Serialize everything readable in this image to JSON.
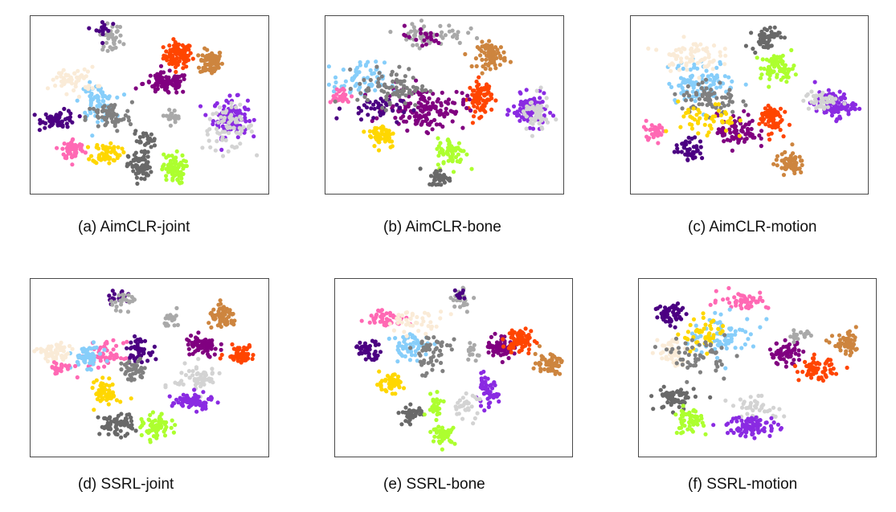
{
  "chart_data": [
    {
      "type": "scatter",
      "caption": "(a) AimCLR-joint",
      "xlim": [
        0,
        100
      ],
      "ylim": [
        0,
        100
      ],
      "clusters": [
        {
          "color": "#ff4500",
          "center": [
            62,
            78
          ],
          "spread": [
            5,
            6
          ],
          "count": 90
        },
        {
          "color": "#cd853f",
          "center": [
            76,
            74
          ],
          "spread": [
            4,
            6
          ],
          "count": 80
        },
        {
          "color": "#8a2be2",
          "center": [
            84,
            43
          ],
          "spread": [
            6,
            9
          ],
          "count": 110
        },
        {
          "color": "#d3d3d3",
          "center": [
            83,
            37
          ],
          "spread": [
            9,
            10
          ],
          "count": 70
        },
        {
          "color": "#800080",
          "center": [
            57,
            62
          ],
          "spread": [
            8,
            5
          ],
          "count": 90
        },
        {
          "color": "#4b0082",
          "center": [
            12,
            42
          ],
          "spread": [
            6,
            4
          ],
          "count": 60
        },
        {
          "color": "#87cefa",
          "center": [
            28,
            52
          ],
          "spread": [
            6,
            8
          ],
          "count": 70
        },
        {
          "color": "#808080",
          "center": [
            33,
            43
          ],
          "spread": [
            8,
            7
          ],
          "count": 60
        },
        {
          "color": "#ff69b4",
          "center": [
            18,
            25
          ],
          "spread": [
            4,
            5
          ],
          "count": 55
        },
        {
          "color": "#ffd700",
          "center": [
            32,
            23
          ],
          "spread": [
            5,
            5
          ],
          "count": 60
        },
        {
          "color": "#adff2f",
          "center": [
            60,
            14
          ],
          "spread": [
            4,
            7
          ],
          "count": 70
        },
        {
          "color": "#696969",
          "center": [
            46,
            15
          ],
          "spread": [
            4,
            7
          ],
          "count": 70
        },
        {
          "color": "#faebd7",
          "center": [
            18,
            64
          ],
          "spread": [
            8,
            6
          ],
          "count": 55
        },
        {
          "color": "#a9a9a9",
          "center": [
            34,
            88
          ],
          "spread": [
            4,
            6
          ],
          "count": 35
        },
        {
          "color": "#4b0082",
          "center": [
            30,
            92
          ],
          "spread": [
            3,
            5
          ],
          "count": 15
        },
        {
          "color": "#a9a9a9",
          "center": [
            60,
            44
          ],
          "spread": [
            4,
            3
          ],
          "count": 20
        },
        {
          "color": "#696969",
          "center": [
            48,
            30
          ],
          "spread": [
            4,
            4
          ],
          "count": 25
        }
      ]
    },
    {
      "type": "scatter",
      "caption": "(b) AimCLR-bone",
      "xlim": [
        0,
        100
      ],
      "ylim": [
        0,
        100
      ],
      "clusters": [
        {
          "color": "#cd853f",
          "center": [
            70,
            78
          ],
          "spread": [
            5,
            6
          ],
          "count": 75
        },
        {
          "color": "#ff4500",
          "center": [
            65,
            54
          ],
          "spread": [
            4,
            8
          ],
          "count": 85
        },
        {
          "color": "#8a2be2",
          "center": [
            86,
            47
          ],
          "spread": [
            6,
            7
          ],
          "count": 90
        },
        {
          "color": "#d3d3d3",
          "center": [
            88,
            44
          ],
          "spread": [
            5,
            9
          ],
          "count": 50
        },
        {
          "color": "#800080",
          "center": [
            42,
            48
          ],
          "spread": [
            14,
            10
          ],
          "count": 140
        },
        {
          "color": "#4b0082",
          "center": [
            20,
            48
          ],
          "spread": [
            10,
            6
          ],
          "count": 40
        },
        {
          "color": "#87cefa",
          "center": [
            14,
            63
          ],
          "spread": [
            9,
            9
          ],
          "count": 60
        },
        {
          "color": "#ff69b4",
          "center": [
            6,
            55
          ],
          "spread": [
            4,
            4
          ],
          "count": 25
        },
        {
          "color": "#808080",
          "center": [
            28,
            60
          ],
          "spread": [
            12,
            9
          ],
          "count": 80
        },
        {
          "color": "#ffd700",
          "center": [
            24,
            33
          ],
          "spread": [
            5,
            6
          ],
          "count": 55
        },
        {
          "color": "#adff2f",
          "center": [
            53,
            23
          ],
          "spread": [
            5,
            7
          ],
          "count": 65
        },
        {
          "color": "#696969",
          "center": [
            48,
            9
          ],
          "spread": [
            4,
            4
          ],
          "count": 40
        },
        {
          "color": "#a9a9a9",
          "center": [
            44,
            90
          ],
          "spread": [
            12,
            5
          ],
          "count": 60
        },
        {
          "color": "#800080",
          "center": [
            40,
            88
          ],
          "spread": [
            8,
            5
          ],
          "count": 20
        }
      ]
    },
    {
      "type": "scatter",
      "caption": "(c) AimCLR-motion",
      "xlim": [
        0,
        100
      ],
      "ylim": [
        0,
        100
      ],
      "clusters": [
        {
          "color": "#696969",
          "center": [
            57,
            88
          ],
          "spread": [
            5,
            6
          ],
          "count": 55
        },
        {
          "color": "#adff2f",
          "center": [
            62,
            71
          ],
          "spread": [
            6,
            6
          ],
          "count": 70
        },
        {
          "color": "#8a2be2",
          "center": [
            86,
            50
          ],
          "spread": [
            7,
            6
          ],
          "count": 90
        },
        {
          "color": "#d3d3d3",
          "center": [
            80,
            52
          ],
          "spread": [
            6,
            5
          ],
          "count": 40
        },
        {
          "color": "#ff4500",
          "center": [
            59,
            43
          ],
          "spread": [
            4,
            7
          ],
          "count": 70
        },
        {
          "color": "#cd853f",
          "center": [
            67,
            17
          ],
          "spread": [
            5,
            5
          ],
          "count": 60
        },
        {
          "color": "#800080",
          "center": [
            45,
            35
          ],
          "spread": [
            7,
            8
          ],
          "count": 80
        },
        {
          "color": "#4b0082",
          "center": [
            25,
            25
          ],
          "spread": [
            5,
            5
          ],
          "count": 45
        },
        {
          "color": "#87cefa",
          "center": [
            30,
            63
          ],
          "spread": [
            12,
            10
          ],
          "count": 100
        },
        {
          "color": "#faebd7",
          "center": [
            25,
            78
          ],
          "spread": [
            10,
            7
          ],
          "count": 70
        },
        {
          "color": "#808080",
          "center": [
            33,
            53
          ],
          "spread": [
            10,
            9
          ],
          "count": 70
        },
        {
          "color": "#ff69b4",
          "center": [
            10,
            36
          ],
          "spread": [
            4,
            4
          ],
          "count": 30
        },
        {
          "color": "#ffd700",
          "center": [
            32,
            40
          ],
          "spread": [
            10,
            9
          ],
          "count": 50
        }
      ]
    },
    {
      "type": "scatter",
      "caption": "(d) SSRL-joint",
      "xlim": [
        0,
        100
      ],
      "ylim": [
        0,
        100
      ],
      "clusters": [
        {
          "color": "#4b0082",
          "center": [
            37,
            90
          ],
          "spread": [
            4,
            3
          ],
          "count": 20
        },
        {
          "color": "#a9a9a9",
          "center": [
            40,
            88
          ],
          "spread": [
            5,
            4
          ],
          "count": 25
        },
        {
          "color": "#a9a9a9",
          "center": [
            60,
            77
          ],
          "spread": [
            3,
            4
          ],
          "count": 20
        },
        {
          "color": "#cd853f",
          "center": [
            81,
            78
          ],
          "spread": [
            5,
            5
          ],
          "count": 65
        },
        {
          "color": "#800080",
          "center": [
            72,
            62
          ],
          "spread": [
            6,
            5
          ],
          "count": 70
        },
        {
          "color": "#ff4500",
          "center": [
            88,
            58
          ],
          "spread": [
            5,
            4
          ],
          "count": 60
        },
        {
          "color": "#4b0082",
          "center": [
            45,
            60
          ],
          "spread": [
            4,
            5
          ],
          "count": 45
        },
        {
          "color": "#ff69b4",
          "center": [
            32,
            57
          ],
          "spread": [
            6,
            6
          ],
          "count": 55
        },
        {
          "color": "#87cefa",
          "center": [
            24,
            56
          ],
          "spread": [
            5,
            5
          ],
          "count": 55
        },
        {
          "color": "#faebd7",
          "center": [
            10,
            58
          ],
          "spread": [
            6,
            5
          ],
          "count": 55
        },
        {
          "color": "#ff69b4",
          "center": [
            12,
            50
          ],
          "spread": [
            5,
            3
          ],
          "count": 25
        },
        {
          "color": "#808080",
          "center": [
            43,
            48
          ],
          "spread": [
            5,
            5
          ],
          "count": 40
        },
        {
          "color": "#ffd700",
          "center": [
            32,
            36
          ],
          "spread": [
            4,
            6
          ],
          "count": 55
        },
        {
          "color": "#d3d3d3",
          "center": [
            70,
            44
          ],
          "spread": [
            8,
            7
          ],
          "count": 60
        },
        {
          "color": "#8a2be2",
          "center": [
            68,
            31
          ],
          "spread": [
            7,
            4
          ],
          "count": 70
        },
        {
          "color": "#696969",
          "center": [
            36,
            18
          ],
          "spread": [
            6,
            5
          ],
          "count": 65
        },
        {
          "color": "#adff2f",
          "center": [
            53,
            16
          ],
          "spread": [
            5,
            6
          ],
          "count": 65
        }
      ]
    },
    {
      "type": "scatter",
      "caption": "(e) SSRL-bone",
      "xlim": [
        0,
        100
      ],
      "ylim": [
        0,
        100
      ],
      "clusters": [
        {
          "color": "#4b0082",
          "center": [
            14,
            60
          ],
          "spread": [
            5,
            4
          ],
          "count": 45
        },
        {
          "color": "#ff69b4",
          "center": [
            22,
            78
          ],
          "spread": [
            7,
            4
          ],
          "count": 45
        },
        {
          "color": "#87cefa",
          "center": [
            32,
            62
          ],
          "spread": [
            7,
            6
          ],
          "count": 55
        },
        {
          "color": "#faebd7",
          "center": [
            34,
            76
          ],
          "spread": [
            10,
            5
          ],
          "count": 40
        },
        {
          "color": "#a9a9a9",
          "center": [
            54,
            89
          ],
          "spread": [
            4,
            5
          ],
          "count": 25
        },
        {
          "color": "#4b0082",
          "center": [
            52,
            92
          ],
          "spread": [
            2,
            3
          ],
          "count": 10
        },
        {
          "color": "#a9a9a9",
          "center": [
            58,
            60
          ],
          "spread": [
            2,
            6
          ],
          "count": 15
        },
        {
          "color": "#800080",
          "center": [
            70,
            62
          ],
          "spread": [
            5,
            5
          ],
          "count": 65
        },
        {
          "color": "#ff4500",
          "center": [
            78,
            65
          ],
          "spread": [
            5,
            6
          ],
          "count": 70
        },
        {
          "color": "#cd853f",
          "center": [
            90,
            53
          ],
          "spread": [
            5,
            5
          ],
          "count": 55
        },
        {
          "color": "#808080",
          "center": [
            40,
            58
          ],
          "spread": [
            7,
            10
          ],
          "count": 50
        },
        {
          "color": "#ffd700",
          "center": [
            23,
            41
          ],
          "spread": [
            5,
            4
          ],
          "count": 50
        },
        {
          "color": "#8a2be2",
          "center": [
            64,
            36
          ],
          "spread": [
            4,
            7
          ],
          "count": 50
        },
        {
          "color": "#d3d3d3",
          "center": [
            55,
            28
          ],
          "spread": [
            5,
            6
          ],
          "count": 30
        },
        {
          "color": "#696969",
          "center": [
            32,
            24
          ],
          "spread": [
            4,
            4
          ],
          "count": 40
        },
        {
          "color": "#adff2f",
          "center": [
            46,
            12
          ],
          "spread": [
            4,
            4
          ],
          "count": 45
        },
        {
          "color": "#adff2f",
          "center": [
            42,
            30
          ],
          "spread": [
            3,
            6
          ],
          "count": 25
        }
      ]
    },
    {
      "type": "scatter",
      "caption": "(f) SSRL-motion",
      "xlim": [
        0,
        100
      ],
      "ylim": [
        0,
        100
      ],
      "clusters": [
        {
          "color": "#4b0082",
          "center": [
            14,
            80
          ],
          "spread": [
            6,
            6
          ],
          "count": 55
        },
        {
          "color": "#ff69b4",
          "center": [
            44,
            88
          ],
          "spread": [
            9,
            4
          ],
          "count": 50
        },
        {
          "color": "#87cefa",
          "center": [
            36,
            68
          ],
          "spread": [
            12,
            9
          ],
          "count": 80
        },
        {
          "color": "#faebd7",
          "center": [
            14,
            58
          ],
          "spread": [
            5,
            8
          ],
          "count": 40
        },
        {
          "color": "#ffd700",
          "center": [
            28,
            68
          ],
          "spread": [
            8,
            8
          ],
          "count": 45
        },
        {
          "color": "#808080",
          "center": [
            25,
            57
          ],
          "spread": [
            10,
            9
          ],
          "count": 55
        },
        {
          "color": "#800080",
          "center": [
            62,
            58
          ],
          "spread": [
            6,
            5
          ],
          "count": 60
        },
        {
          "color": "#ff4500",
          "center": [
            75,
            49
          ],
          "spread": [
            6,
            5
          ],
          "count": 65
        },
        {
          "color": "#cd853f",
          "center": [
            88,
            63
          ],
          "spread": [
            5,
            5
          ],
          "count": 55
        },
        {
          "color": "#a9a9a9",
          "center": [
            68,
            68
          ],
          "spread": [
            5,
            3
          ],
          "count": 20
        },
        {
          "color": "#696969",
          "center": [
            15,
            33
          ],
          "spread": [
            7,
            6
          ],
          "count": 60
        },
        {
          "color": "#adff2f",
          "center": [
            21,
            20
          ],
          "spread": [
            5,
            6
          ],
          "count": 55
        },
        {
          "color": "#d3d3d3",
          "center": [
            50,
            27
          ],
          "spread": [
            10,
            5
          ],
          "count": 40
        },
        {
          "color": "#8a2be2",
          "center": [
            48,
            17
          ],
          "spread": [
            9,
            5
          ],
          "count": 80
        }
      ]
    }
  ]
}
